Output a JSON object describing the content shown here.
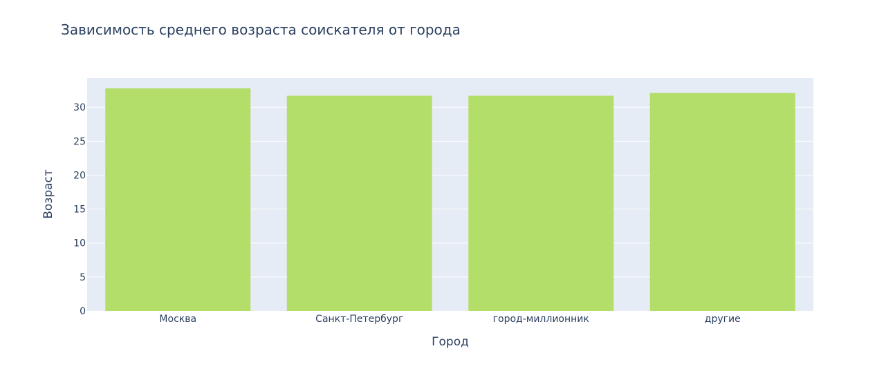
{
  "chart_data": {
    "type": "bar",
    "title": "Зависимость среднего возраста соискателя от города",
    "xlabel": "Город",
    "ylabel": "Возраст",
    "categories": [
      "Москва",
      "Санкт-Петербург",
      "город-миллионник",
      "другие"
    ],
    "values": [
      32.8,
      31.7,
      31.7,
      32.1
    ],
    "ylim": [
      0,
      34.3
    ],
    "yticks": [
      0,
      5,
      10,
      15,
      20,
      25,
      30
    ],
    "grid": true,
    "bar_color": "#b3de69",
    "plot_bgcolor": "#e5ecf6",
    "text_color": "#2a3f5f"
  }
}
